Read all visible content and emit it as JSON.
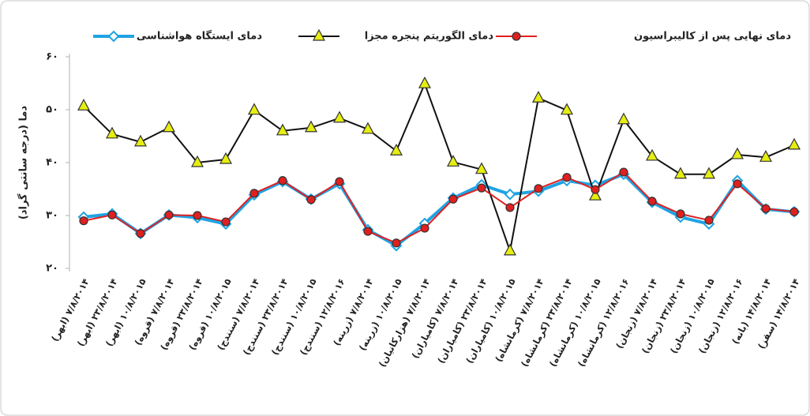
{
  "chart_data": {
    "type": "line",
    "y_label": "دما (درجه سانتی گراد)",
    "categories": [
      "۷/۸/۲۰۱۴ (ابهر)",
      "۲۳/۸/۲۰۱۴ (ابهر)",
      "۱۰/۸/۲۰۱۵ (ابهر)",
      "۷/۸/۲۰۱۴ (قروه)",
      "۲۳/۸/۲۰۱۴ (قروه)",
      "۱۰/۸/۲۰۱۵ (قروه)",
      "۷/۸/۲۰۱۴ (سنندج)",
      "۲۳/۸/۲۰۱۴ (سنندج)",
      "۱۰/۸/۲۰۱۵ (سنندج)",
      "۱۲/۸/۲۰۱۶ (سنندج)",
      "۷/۸/۲۰۱۴ (زرینه)",
      "۱۰/۸/۲۰۱۵ (زرینه)",
      "۷/۸/۲۰۱۴ (هزارکانیان)",
      "۷/۸/۲۰۱۴ (کامیاران)",
      "۲۳/۸/۲۰۱۴ (کامیاران)",
      "۱۰/۸/۲۰۱۵ (کامیاران)",
      "۷/۸/۲۰۱۴ (کرمانشاه)",
      "۲۳/۸/۲۰۱۴ (کرمانشاه)",
      "۱۰/۸/۲۰۱۵ (کرمانشاه)",
      "۱۲/۸/۲۰۱۶ (کرمانشاه)",
      "۷/۸/۲۰۱۴ (زنجان)",
      "۲۳/۸/۲۰۱۴ (زنجان)",
      "۱۰/۸/۲۰۱۵ (زنجان)",
      "۱۲/۸/۲۰۱۶ (زنجان)",
      "۱۴/۸/۲۰۱۴ (بانه)",
      "۱۴/۸/۲۰۱۴ (سقز)"
    ],
    "series": [
      {
        "name": "دمای ایستگاه هواشناسی",
        "color": "#1fa3e3",
        "marker": "diamond",
        "marker_color": "#ffffff",
        "values": [
          29.7,
          30.3,
          26.6,
          30.1,
          29.6,
          28.4,
          33.9,
          36.4,
          33.1,
          36.0,
          27.3,
          24.3,
          28.5,
          33.3,
          35.8,
          34.0,
          34.6,
          36.6,
          35.7,
          37.8,
          32.5,
          29.7,
          28.4,
          36.6,
          31.2,
          30.7
        ]
      },
      {
        "name": "دمای الگوریتم پنجره مجزا",
        "color": "#111111",
        "marker": "triangle",
        "marker_color": "#e6ee10",
        "values": [
          50.7,
          45.4,
          43.9,
          46.6,
          40.0,
          40.6,
          49.9,
          46.0,
          46.6,
          48.4,
          46.3,
          42.2,
          54.9,
          40.1,
          38.7,
          23.3,
          52.2,
          49.9,
          33.7,
          48.1,
          41.2,
          37.8,
          37.8,
          41.5,
          41.0,
          43.3
        ]
      },
      {
        "name": "دمای نهایی پس از کالیبراسیون",
        "color": "#e02020",
        "marker": "circle",
        "marker_color": "#e02020",
        "values": [
          29.0,
          30.1,
          26.6,
          30.1,
          30.0,
          28.8,
          34.2,
          36.6,
          33.0,
          36.4,
          27.0,
          24.8,
          27.6,
          33.1,
          35.2,
          31.5,
          35.1,
          37.2,
          34.9,
          38.2,
          32.7,
          30.3,
          29.1,
          36.0,
          31.3,
          30.7
        ]
      }
    ],
    "ylim": [
      20,
      60
    ],
    "yticks": [
      {
        "value": 20,
        "label": "۲۰"
      },
      {
        "value": 30,
        "label": "۳۰"
      },
      {
        "value": 40,
        "label": "۴۰"
      },
      {
        "value": 50,
        "label": "۵۰"
      },
      {
        "value": 60,
        "label": "۶۰"
      }
    ],
    "grid": false,
    "legend": "top"
  }
}
